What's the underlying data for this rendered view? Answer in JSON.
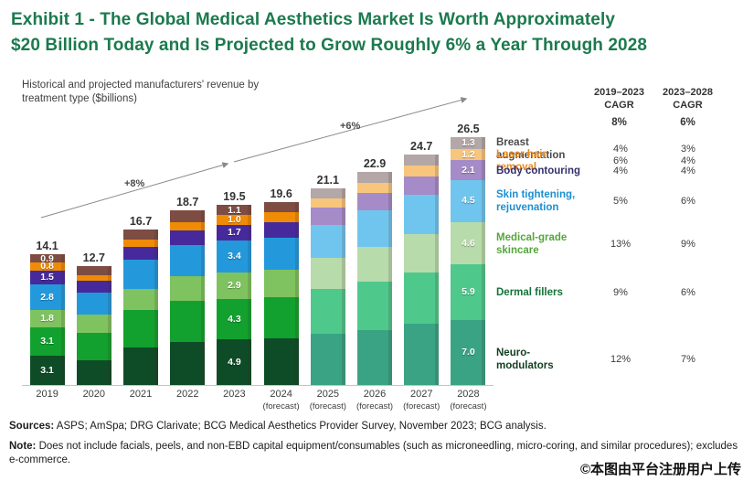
{
  "title": {
    "line1": "Exhibit 1 - The Global Medical Aesthetics Market Is Worth Approximately",
    "line2": "$20 Billion Today and Is Projected to Grow Roughly 6% a Year Through 2028"
  },
  "subtitle": {
    "line1": "Historical and projected manufacturers' revenue by",
    "line2": "treatment type ($billions)"
  },
  "chart_data": {
    "type": "bar",
    "stacked": true,
    "unit": "$billions",
    "series_bottom_to_top": [
      "Neuro-modulators",
      "Dermal fillers",
      "Medical-grade skincare",
      "Skin tightening, rejuvenation",
      "Body contouring",
      "Laser hair removal",
      "Breast augmentation"
    ],
    "colors_solid": [
      "#0e4c27",
      "#12a12e",
      "#7ec35f",
      "#2399dc",
      "#462a9b",
      "#f08b06",
      "#7d4c43"
    ],
    "colors_forecast": [
      "#3aa384",
      "#4fc88c",
      "#b7dbab",
      "#70c5ee",
      "#a58bc7",
      "#f7c57c",
      "#b3a7a7"
    ],
    "growth_label_historical": "+8%",
    "growth_label_forecast": "+6%",
    "bars": [
      {
        "year": "2019",
        "sublabel": "",
        "muted": false,
        "labeled": true,
        "total": "14.1",
        "values": [
          3.1,
          3.1,
          1.8,
          2.8,
          1.5,
          0.8,
          0.9
        ]
      },
      {
        "year": "2020",
        "sublabel": "",
        "muted": false,
        "labeled": false,
        "total": "12.7",
        "values": [
          2.7,
          2.9,
          2.0,
          2.3,
          1.3,
          0.6,
          0.9
        ]
      },
      {
        "year": "2021",
        "sublabel": "",
        "muted": false,
        "labeled": false,
        "total": "16.7",
        "values": [
          4.0,
          4.0,
          2.3,
          3.1,
          1.4,
          0.8,
          1.1
        ]
      },
      {
        "year": "2022",
        "sublabel": "",
        "muted": false,
        "labeled": false,
        "total": "18.7",
        "values": [
          4.6,
          4.4,
          2.7,
          3.3,
          1.6,
          0.9,
          1.2
        ]
      },
      {
        "year": "2023",
        "sublabel": "",
        "muted": false,
        "labeled": true,
        "total": "19.5",
        "values": [
          4.9,
          4.3,
          2.9,
          3.4,
          1.7,
          1.0,
          1.1
        ]
      },
      {
        "year": "2024",
        "sublabel": "(forecast)",
        "muted": false,
        "labeled": false,
        "total": "19.6",
        "values": [
          5.0,
          4.4,
          3.0,
          3.4,
          1.7,
          1.0,
          1.1
        ]
      },
      {
        "year": "2025",
        "sublabel": "(forecast)",
        "muted": true,
        "labeled": false,
        "total": "21.1",
        "values": [
          5.5,
          4.8,
          3.3,
          3.6,
          1.8,
          1.0,
          1.1
        ]
      },
      {
        "year": "2026",
        "sublabel": "(forecast)",
        "muted": true,
        "labeled": false,
        "total": "22.9",
        "values": [
          5.9,
          5.2,
          3.7,
          3.9,
          1.9,
          1.1,
          1.2
        ]
      },
      {
        "year": "2027",
        "sublabel": "(forecast)",
        "muted": true,
        "labeled": false,
        "total": "24.7",
        "values": [
          6.6,
          5.5,
          4.1,
          4.2,
          2.0,
          1.1,
          1.2
        ]
      },
      {
        "year": "2028",
        "sublabel": "(forecast)",
        "muted": true,
        "labeled": true,
        "total": "26.5",
        "values": [
          7.0,
          5.9,
          4.6,
          4.5,
          2.1,
          1.2,
          1.3
        ]
      }
    ]
  },
  "cagr_table": {
    "col1": {
      "line1": "2019–2023",
      "line2": "CAGR"
    },
    "col2": {
      "line1": "2023–2028",
      "line2": "CAGR"
    },
    "overall": {
      "col1": "8%",
      "col2": "6%"
    }
  },
  "legend": {
    "rows": [
      {
        "lines": [
          "Breast augmentation"
        ],
        "color": "#4b4b4d",
        "cagr_2019_2023": "4%",
        "cagr_2023_2028": "3%"
      },
      {
        "lines": [
          "Laser hair removal"
        ],
        "color": "#e8891f",
        "cagr_2019_2023": "6%",
        "cagr_2023_2028": "4%"
      },
      {
        "lines": [
          "Body contouring"
        ],
        "color": "#32316d",
        "cagr_2019_2023": "4%",
        "cagr_2023_2028": "4%"
      },
      {
        "lines": [
          "Skin tightening,",
          "rejuvenation"
        ],
        "color": "#1d8fd1",
        "cagr_2019_2023": "5%",
        "cagr_2023_2028": "6%"
      },
      {
        "lines": [
          "Medical-grade",
          "skincare"
        ],
        "color": "#56a53c",
        "cagr_2019_2023": "13%",
        "cagr_2023_2028": "9%"
      },
      {
        "lines": [
          "Dermal fillers"
        ],
        "color": "#137339",
        "cagr_2019_2023": "9%",
        "cagr_2023_2028": "6%"
      },
      {
        "lines": [
          "Neuro-modulators"
        ],
        "color": "#123f22",
        "cagr_2019_2023": "12%",
        "cagr_2023_2028": "7%"
      }
    ]
  },
  "footer": {
    "sources_label": "Sources:",
    "sources_text": " ASPS; AmSpa; DRG Clarivate; BCG Medical Aesthetics Provider Survey, November 2023; BCG analysis.",
    "note_label": "Note:",
    "note_text": " Does not include facials, peels, and non-EBD capital equipment/consumables (such as microneedling, micro-coring, and similar procedures); excludes e-commerce."
  },
  "watermark": "©本图由平台注册用户上传"
}
